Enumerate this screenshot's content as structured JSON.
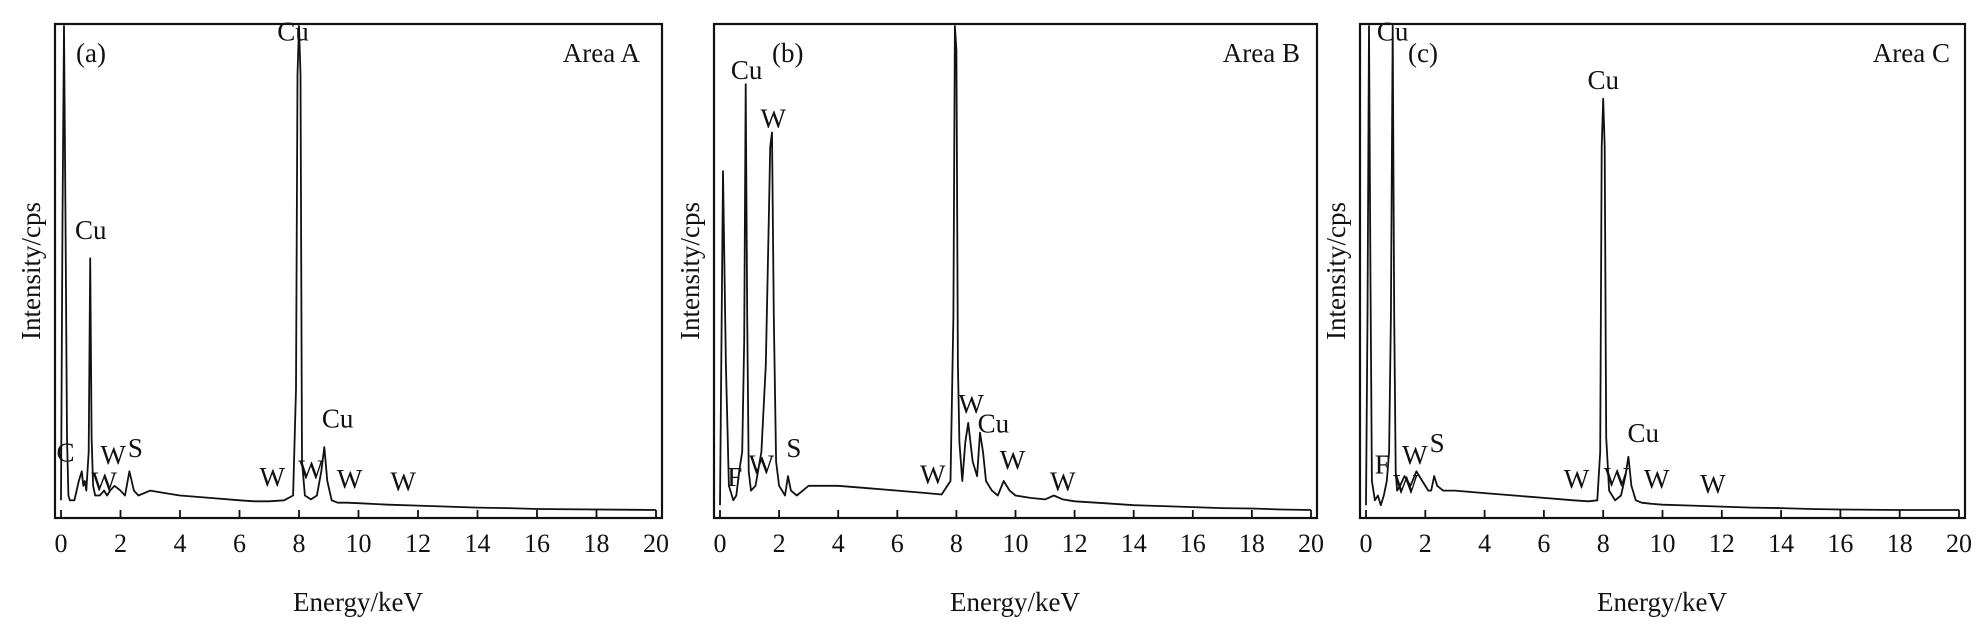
{
  "figure": {
    "xlabel": "Energy/keV",
    "ylabel": "Intensity/cps"
  },
  "chart_data": [
    {
      "type": "line",
      "panel_tag": "(a)",
      "area_label": "Area A",
      "xlabel": "Energy/keV",
      "ylabel": "Intensity/cps",
      "xlim": [
        0,
        20
      ],
      "ylim": [
        0,
        100
      ],
      "xticks": [
        "0",
        "2",
        "4",
        "6",
        "8",
        "10",
        "12",
        "14",
        "16",
        "18",
        "20"
      ],
      "grid": false,
      "series": [
        {
          "x": [
            0,
            0.05,
            0.1,
            0.15,
            0.2,
            0.25,
            0.3,
            0.45,
            0.6,
            0.7,
            0.75,
            0.8,
            0.85,
            0.93,
            0.98,
            1.03,
            1.08,
            1.15,
            1.3,
            1.45,
            1.55,
            1.65,
            1.8,
            2.0,
            2.15,
            2.3,
            2.45,
            2.6,
            3.0,
            3.5,
            4.0,
            5.0,
            6.0,
            6.5,
            7.0,
            7.5,
            7.8,
            7.9,
            7.95,
            8.0,
            8.05,
            8.1,
            8.2,
            8.4,
            8.6,
            8.75,
            8.85,
            8.95,
            9.1,
            9.3,
            9.6,
            10.0,
            11.0,
            12.0,
            13.0,
            14.0,
            15.0,
            16.0,
            20.0
          ],
          "y": [
            2,
            60,
            100,
            60,
            15,
            3,
            2,
            2,
            6,
            8,
            5,
            6,
            4,
            12,
            52,
            15,
            5,
            3,
            3,
            4,
            3,
            4,
            5,
            4,
            3,
            8,
            4,
            3,
            4,
            3.5,
            3,
            2.5,
            2,
            1.8,
            1.8,
            2,
            3,
            25,
            90,
            100,
            90,
            10,
            3,
            2.2,
            3,
            8,
            13,
            6,
            2,
            1.5,
            1.5,
            1.4,
            1.1,
            0.9,
            0.7,
            0.5,
            0.4,
            0.2,
            0
          ]
        }
      ],
      "peak_labels": [
        {
          "text": "Cu",
          "x": 7.8,
          "y": 97
        },
        {
          "text": "Cu",
          "x": 1.0,
          "y": 56
        },
        {
          "text": "C",
          "x": 0.15,
          "y": 10
        },
        {
          "text": "W",
          "x": 1.75,
          "y": 9.5
        },
        {
          "text": "W",
          "x": 1.45,
          "y": 4
        },
        {
          "text": "S",
          "x": 2.5,
          "y": 11
        },
        {
          "text": "Cu",
          "x": 9.3,
          "y": 17
        },
        {
          "text": "W",
          "x": 7.1,
          "y": 5
        },
        {
          "text": "W",
          "x": 8.4,
          "y": 6.5
        },
        {
          "text": "W",
          "x": 9.7,
          "y": 4.5
        },
        {
          "text": "W",
          "x": 11.5,
          "y": 4
        }
      ]
    },
    {
      "type": "line",
      "panel_tag": "(b)",
      "area_label": "Area B",
      "xlabel": "Energy/keV",
      "ylabel": "Intensity/cps",
      "xlim": [
        0,
        20
      ],
      "ylim": [
        0,
        100
      ],
      "xticks": [
        "0",
        "2",
        "4",
        "6",
        "8",
        "10",
        "12",
        "14",
        "16",
        "18",
        "20"
      ],
      "grid": false,
      "series": [
        {
          "x": [
            0,
            0.1,
            0.2,
            0.3,
            0.45,
            0.55,
            0.65,
            0.75,
            0.82,
            0.87,
            0.92,
            0.97,
            1.05,
            1.2,
            1.4,
            1.55,
            1.65,
            1.7,
            1.76,
            1.82,
            1.9,
            2.0,
            2.1,
            2.2,
            2.3,
            2.4,
            2.6,
            3.0,
            4.0,
            5.0,
            6.0,
            7.0,
            7.5,
            7.8,
            7.9,
            7.95,
            8.0,
            8.05,
            8.1,
            8.2,
            8.3,
            8.4,
            8.55,
            8.7,
            8.8,
            8.9,
            9.0,
            9.2,
            9.4,
            9.6,
            9.8,
            10.0,
            10.5,
            11.0,
            11.3,
            11.6,
            12.0,
            13.0,
            14.0,
            15.0,
            16.0,
            17.0,
            18.0,
            19.0,
            20.0
          ],
          "y": [
            1,
            70,
            30,
            5,
            2,
            3,
            8,
            12,
            35,
            88,
            40,
            8,
            4,
            5,
            12,
            30,
            60,
            75,
            78,
            40,
            10,
            5,
            4,
            3,
            7,
            4,
            3,
            5,
            5,
            4.5,
            4,
            3.5,
            3.2,
            6,
            40,
            100,
            95,
            30,
            14,
            6,
            14,
            18,
            10,
            7,
            16,
            12,
            6,
            4,
            3,
            6,
            4,
            3,
            2.5,
            2.2,
            3,
            2.2,
            1.8,
            1.4,
            1,
            0.8,
            0.6,
            0.4,
            0.3,
            0.1,
            0
          ]
        }
      ],
      "peak_labels": [
        {
          "text": "Cu",
          "x": 0.9,
          "y": 89
        },
        {
          "text": "W",
          "x": 1.8,
          "y": 79
        },
        {
          "text": "W",
          "x": 8.5,
          "y": 20
        },
        {
          "text": "Cu",
          "x": 9.25,
          "y": 16
        },
        {
          "text": "F",
          "x": 0.5,
          "y": 5
        },
        {
          "text": "W",
          "x": 1.4,
          "y": 7.5
        },
        {
          "text": "S",
          "x": 2.5,
          "y": 11
        },
        {
          "text": "W",
          "x": 7.2,
          "y": 5.5
        },
        {
          "text": "W",
          "x": 9.9,
          "y": 8.5
        },
        {
          "text": "W",
          "x": 11.6,
          "y": 4
        }
      ]
    },
    {
      "type": "line",
      "panel_tag": "(c)",
      "area_label": "Area C",
      "xlabel": "Energy/keV",
      "ylabel": "Intensity/cps",
      "xlim": [
        0,
        20
      ],
      "ylim": [
        0,
        100
      ],
      "xticks": [
        "0",
        "2",
        "4",
        "6",
        "8",
        "10",
        "12",
        "14",
        "16",
        "18",
        "20"
      ],
      "grid": false,
      "series": [
        {
          "x": [
            0,
            0.05,
            0.1,
            0.15,
            0.2,
            0.3,
            0.4,
            0.5,
            0.6,
            0.7,
            0.78,
            0.84,
            0.9,
            0.95,
            1.0,
            1.05,
            1.15,
            1.3,
            1.5,
            1.7,
            1.9,
            2.1,
            2.2,
            2.3,
            2.4,
            2.6,
            3.0,
            4.0,
            5.0,
            6.0,
            7.0,
            7.5,
            7.8,
            7.9,
            7.95,
            8.0,
            8.05,
            8.1,
            8.2,
            8.4,
            8.6,
            8.75,
            8.85,
            8.95,
            9.1,
            9.3,
            9.6,
            10.0,
            11.0,
            12.0,
            13.0,
            14.0,
            15.0,
            16.0,
            18.0,
            20.0
          ],
          "y": [
            1,
            40,
            100,
            50,
            6,
            2,
            3,
            1,
            3,
            6,
            12,
            40,
            100,
            40,
            8,
            4,
            5,
            7,
            5,
            8,
            6,
            4,
            4,
            7,
            5,
            4,
            4,
            3.5,
            3,
            2.5,
            2,
            1.8,
            2,
            12,
            75,
            85,
            75,
            15,
            4,
            2,
            3,
            7,
            11,
            5,
            2,
            1.5,
            1.3,
            1.1,
            0.9,
            0.7,
            0.5,
            0.4,
            0.2,
            0.1,
            0,
            0
          ]
        }
      ],
      "peak_labels": [
        {
          "text": "Cu",
          "x": 0.9,
          "y": 97
        },
        {
          "text": "Cu",
          "x": 8.0,
          "y": 87
        },
        {
          "text": "F",
          "x": 0.55,
          "y": 7.5
        },
        {
          "text": "W",
          "x": 1.65,
          "y": 9.5
        },
        {
          "text": "W",
          "x": 1.35,
          "y": 3.5
        },
        {
          "text": "S",
          "x": 2.4,
          "y": 12
        },
        {
          "text": "Cu",
          "x": 9.35,
          "y": 14
        },
        {
          "text": "W",
          "x": 7.1,
          "y": 4.5
        },
        {
          "text": "W",
          "x": 8.45,
          "y": 5
        },
        {
          "text": "W",
          "x": 9.8,
          "y": 4.5
        },
        {
          "text": "W",
          "x": 11.7,
          "y": 3.5
        }
      ]
    }
  ]
}
